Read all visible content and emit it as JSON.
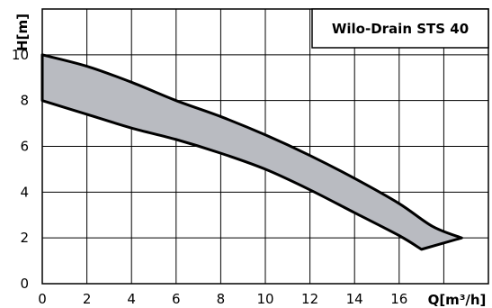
{
  "chart_data": {
    "type": "area",
    "title": "Wilo-Drain STS 40",
    "xlabel": "Q[m³/h]",
    "ylabel": "H[m]",
    "xlim": [
      0,
      20
    ],
    "ylim": [
      0,
      12
    ],
    "x_ticks": [
      0,
      2,
      4,
      6,
      8,
      10,
      12,
      14,
      16
    ],
    "y_ticks": [
      0,
      2,
      4,
      6,
      8,
      10
    ],
    "grid": true,
    "band_color": "#b9bbc1",
    "line_color": "#000000",
    "upper_curve": [
      {
        "x": 0,
        "y": 10
      },
      {
        "x": 2,
        "y": 9.5
      },
      {
        "x": 4,
        "y": 8.8
      },
      {
        "x": 6,
        "y": 8.0
      },
      {
        "x": 8,
        "y": 7.3
      },
      {
        "x": 10,
        "y": 6.5
      },
      {
        "x": 12,
        "y": 5.6
      },
      {
        "x": 14,
        "y": 4.6
      },
      {
        "x": 16,
        "y": 3.5
      },
      {
        "x": 17.5,
        "y": 2.5
      },
      {
        "x": 18.8,
        "y": 2.0
      }
    ],
    "lower_curve": [
      {
        "x": 0,
        "y": 8.0
      },
      {
        "x": 2,
        "y": 7.4
      },
      {
        "x": 4,
        "y": 6.8
      },
      {
        "x": 6,
        "y": 6.3
      },
      {
        "x": 8,
        "y": 5.7
      },
      {
        "x": 10,
        "y": 5.0
      },
      {
        "x": 12,
        "y": 4.1
      },
      {
        "x": 14,
        "y": 3.1
      },
      {
        "x": 16,
        "y": 2.1
      },
      {
        "x": 17,
        "y": 1.5
      }
    ]
  }
}
